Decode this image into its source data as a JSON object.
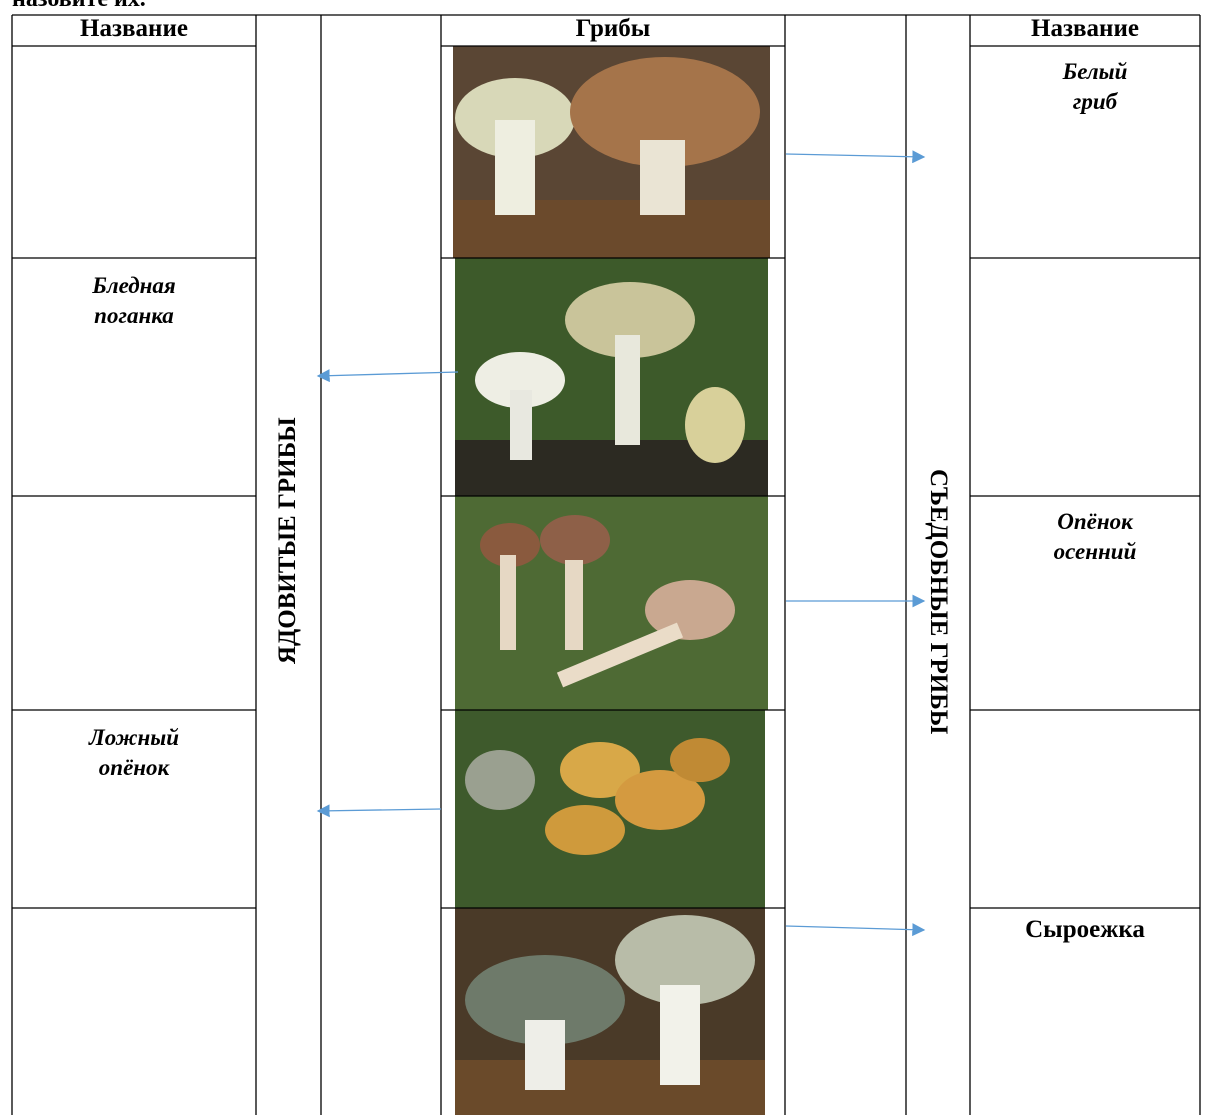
{
  "header": {
    "partial_text": "назовите их."
  },
  "table": {
    "headers": [
      "Название",
      "Грибы",
      "Название"
    ],
    "left_group": "ЯДОВИТЫЕ ГРИБЫ",
    "right_group": "СЪЕДОБНЫЕ ГРИБЫ",
    "rows": [
      {
        "right": [
          "Белый",
          "гриб"
        ]
      },
      {
        "left": [
          "Бледная",
          "поганка"
        ]
      },
      {
        "right": [
          "Опёнок",
          "осенний"
        ]
      },
      {
        "left": [
          "Ложный",
          "опёнок"
        ]
      },
      {
        "right_plain": "Сыроежка"
      }
    ]
  }
}
